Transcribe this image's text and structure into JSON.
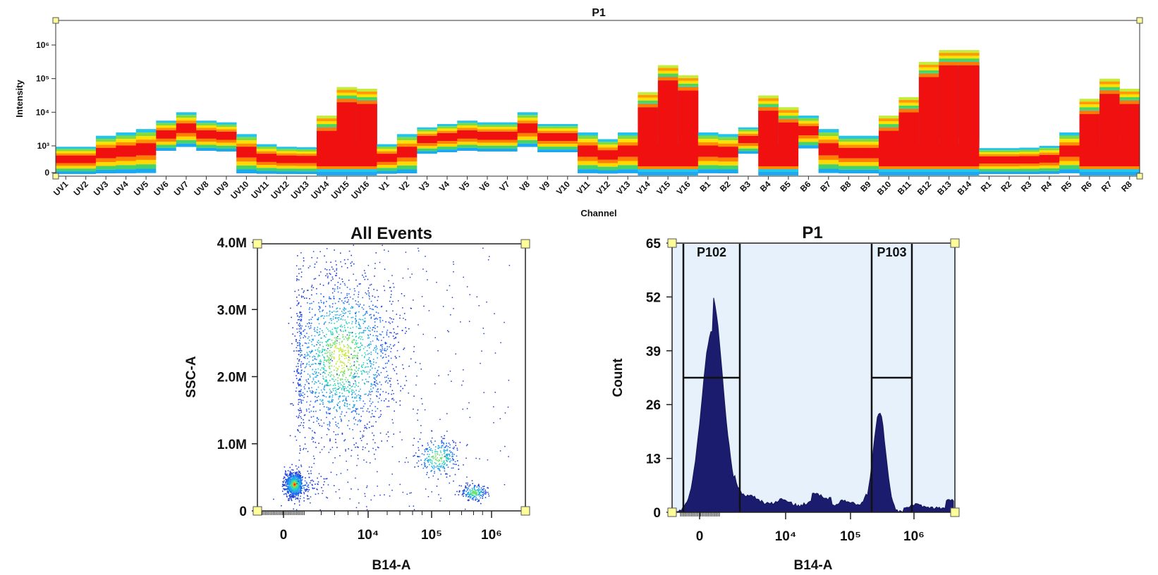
{
  "chart_data": [
    {
      "type": "heatmap",
      "title": "P1",
      "xlabel": "Channel",
      "ylabel": "Intensity",
      "yscale": "log",
      "yticks": [
        "0",
        "10³",
        "10⁴",
        "10⁵",
        "10⁶"
      ],
      "categories": [
        "UV1",
        "UV2",
        "UV3",
        "UV4",
        "UV5",
        "UV6",
        "UV7",
        "UV8",
        "UV9",
        "UV10",
        "UV11",
        "UV12",
        "UV13",
        "UV14",
        "UV15",
        "UV16",
        "V1",
        "V2",
        "V3",
        "V4",
        "V5",
        "V6",
        "V7",
        "V8",
        "V9",
        "V10",
        "V11",
        "V12",
        "V13",
        "V14",
        "V15",
        "V16",
        "B1",
        "B2",
        "B3",
        "B4",
        "B5",
        "B6",
        "B7",
        "B8",
        "B9",
        "B10",
        "B11",
        "B12",
        "B13",
        "B14",
        "R1",
        "R2",
        "R3",
        "R4",
        "R5",
        "R6",
        "R7",
        "R8"
      ],
      "upper_level_log10": [
        2.9,
        2.9,
        3.3,
        3.4,
        3.5,
        3.75,
        4.0,
        3.75,
        3.7,
        3.35,
        3.05,
        2.9,
        2.85,
        3.9,
        4.75,
        4.7,
        3.05,
        3.35,
        3.55,
        3.65,
        3.75,
        3.7,
        3.7,
        4.0,
        3.65,
        3.65,
        3.4,
        3.2,
        3.4,
        4.6,
        5.4,
        5.1,
        3.4,
        3.35,
        3.55,
        4.5,
        4.15,
        3.9,
        3.5,
        3.3,
        3.3,
        3.9,
        4.45,
        5.5,
        5.85,
        5.85,
        2.75,
        2.75,
        2.8,
        3.0,
        3.4,
        4.4,
        5.0,
        4.7
      ],
      "bright_population_top_log10": [
        null,
        null,
        null,
        null,
        null,
        null,
        null,
        null,
        null,
        null,
        null,
        null,
        null,
        3.3,
        4.3,
        4.3,
        null,
        null,
        null,
        null,
        null,
        null,
        null,
        null,
        null,
        null,
        null,
        null,
        null,
        4.1,
        4.9,
        4.6,
        null,
        null,
        null,
        4.0,
        3.7,
        null,
        null,
        null,
        null,
        3.5,
        4.0,
        4.95,
        5.35,
        5.35,
        null,
        null,
        null,
        null,
        null,
        3.95,
        4.45,
        4.2
      ]
    },
    {
      "type": "scatter",
      "title": "All Events",
      "xlabel": "B14-A",
      "ylabel": "SSC-A",
      "xscale": "biexponential",
      "xticks": [
        "0",
        "10⁴",
        "10⁵",
        "10⁶"
      ],
      "yticks": [
        "0",
        "1.0M",
        "2.0M",
        "3.0M",
        "4.0M"
      ],
      "ylim": [
        0,
        4200000
      ],
      "populations": [
        {
          "b14_center_log10": 2.6,
          "ssc_center": 400000,
          "events": 900
        },
        {
          "b14_center_log10": 3.6,
          "ssc_center": 2300000,
          "events": 1600
        },
        {
          "b14_center_log10": 5.1,
          "ssc_center": 800000,
          "events": 250
        },
        {
          "b14_center_log10": 5.7,
          "ssc_center": 280000,
          "events": 200
        }
      ]
    },
    {
      "type": "area",
      "title": "P1",
      "xlabel": "B14-A",
      "ylabel": "Count",
      "xscale": "biexponential",
      "xticks": [
        "0",
        "10⁴",
        "10⁵",
        "10⁶"
      ],
      "yticks": [
        "0",
        "13",
        "26",
        "39",
        "52",
        "65"
      ],
      "ylim": [
        0,
        65
      ],
      "peaks": [
        {
          "b14_center_log10": 2.6,
          "count": 44
        },
        {
          "b14_center_log10": 5.7,
          "count": 24
        }
      ],
      "gates": [
        {
          "label": "P102"
        },
        {
          "label": "P103"
        }
      ]
    }
  ]
}
